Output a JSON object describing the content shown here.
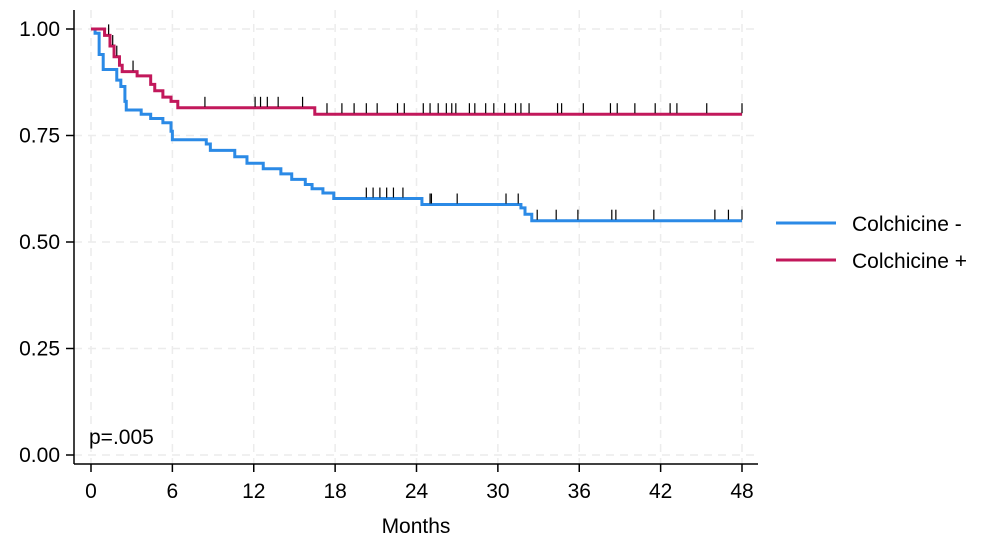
{
  "chart_data": {
    "type": "line",
    "title": "",
    "xlabel": "Months",
    "ylabel": "",
    "xlim": [
      0,
      48
    ],
    "ylim": [
      0,
      1
    ],
    "xticks": [
      "0",
      "6",
      "12",
      "18",
      "24",
      "30",
      "36",
      "42",
      "48"
    ],
    "yticks": [
      "0.00",
      "0.25",
      "0.50",
      "0.75",
      "1.00"
    ],
    "grid": true,
    "legend_position": "right",
    "annotation": "p=.005",
    "series": [
      {
        "name": "Colchicine -",
        "color": "#2b8ae6",
        "step_points": [
          [
            0,
            1.0
          ],
          [
            0.3,
            0.99
          ],
          [
            0.6,
            0.94
          ],
          [
            0.9,
            0.905
          ],
          [
            1.9,
            0.88
          ],
          [
            2.2,
            0.865
          ],
          [
            2.5,
            0.83
          ],
          [
            2.6,
            0.81
          ],
          [
            3.7,
            0.8
          ],
          [
            4.4,
            0.79
          ],
          [
            5.3,
            0.78
          ],
          [
            5.9,
            0.76
          ],
          [
            6.0,
            0.74
          ],
          [
            8.5,
            0.73
          ],
          [
            8.8,
            0.715
          ],
          [
            10.6,
            0.7
          ],
          [
            11.5,
            0.685
          ],
          [
            12.7,
            0.672
          ],
          [
            14.0,
            0.66
          ],
          [
            14.8,
            0.647
          ],
          [
            15.8,
            0.635
          ],
          [
            16.3,
            0.625
          ],
          [
            17.1,
            0.615
          ],
          [
            17.9,
            0.602
          ],
          [
            24.4,
            0.588
          ],
          [
            31.7,
            0.58
          ],
          [
            32.0,
            0.565
          ],
          [
            32.5,
            0.55
          ],
          [
            48,
            0.55
          ]
        ],
        "censor_times": [
          20.3,
          20.8,
          21.3,
          21.8,
          22.3,
          23.0,
          25.0,
          25.1,
          27.0,
          30.6,
          31.5,
          32.9,
          34.3,
          35.9,
          38.4,
          38.7,
          41.5,
          46.0,
          47.0,
          48.0
        ]
      },
      {
        "name": "Colchicine +",
        "color": "#c2185b",
        "step_points": [
          [
            0,
            1.0
          ],
          [
            1.0,
            0.985
          ],
          [
            1.4,
            0.96
          ],
          [
            1.7,
            0.935
          ],
          [
            2.1,
            0.915
          ],
          [
            2.3,
            0.9
          ],
          [
            3.4,
            0.89
          ],
          [
            4.4,
            0.87
          ],
          [
            4.7,
            0.855
          ],
          [
            5.3,
            0.84
          ],
          [
            5.9,
            0.83
          ],
          [
            6.4,
            0.815
          ],
          [
            16.5,
            0.8
          ],
          [
            48,
            0.8
          ]
        ],
        "censor_times": [
          1.3,
          1.6,
          1.9,
          3.1,
          8.4,
          12.1,
          12.5,
          13.0,
          13.8,
          15.6,
          17.4,
          18.5,
          19.4,
          20.3,
          21.1,
          22.6,
          23.1,
          24.5,
          25.0,
          25.6,
          26.2,
          26.6,
          26.9,
          27.9,
          28.3,
          29.1,
          29.7,
          30.5,
          31.3,
          31.7,
          32.3,
          34.4,
          34.7,
          36.3,
          38.3,
          38.8,
          40.1,
          41.6,
          42.7,
          43.2,
          45.4,
          48.0
        ]
      }
    ]
  }
}
